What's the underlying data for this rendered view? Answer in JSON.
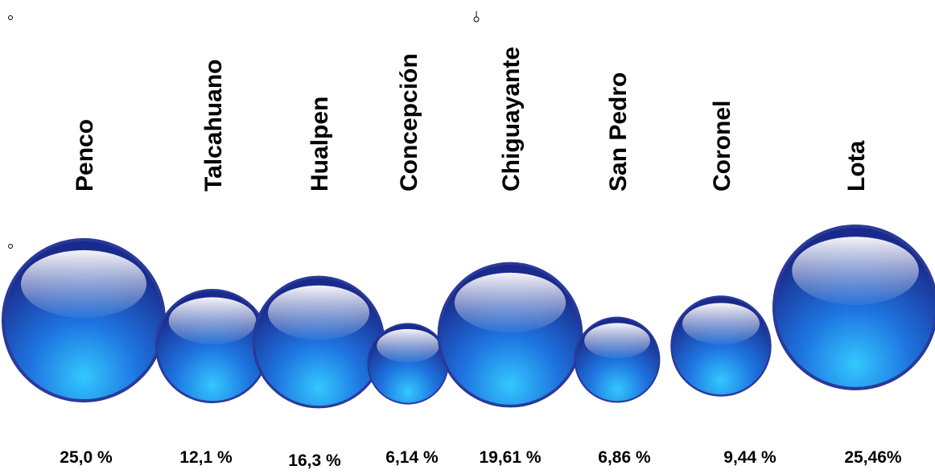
{
  "chart_data": {
    "type": "bubble",
    "categories": [
      "Penco",
      "Talcahuano",
      "Hualpen",
      "Concepción",
      "Chiguayante",
      "San Pedro",
      "Coronel",
      "Lota"
    ],
    "value_labels": [
      "25,0 %",
      "12,1 %",
      "16,3 %",
      "6,14 %",
      "19,61 %",
      "6,86 %",
      "9,44 %",
      "25,46%"
    ],
    "values": [
      25.0,
      12.1,
      16.3,
      6.14,
      19.61,
      6.86,
      9.44,
      25.46
    ],
    "colors": {
      "bubble_dark": "#1a2a8c",
      "bubble_mid": "#1f5fd6",
      "bubble_light": "#29b6f6",
      "rim": "#2a3a9a"
    }
  }
}
